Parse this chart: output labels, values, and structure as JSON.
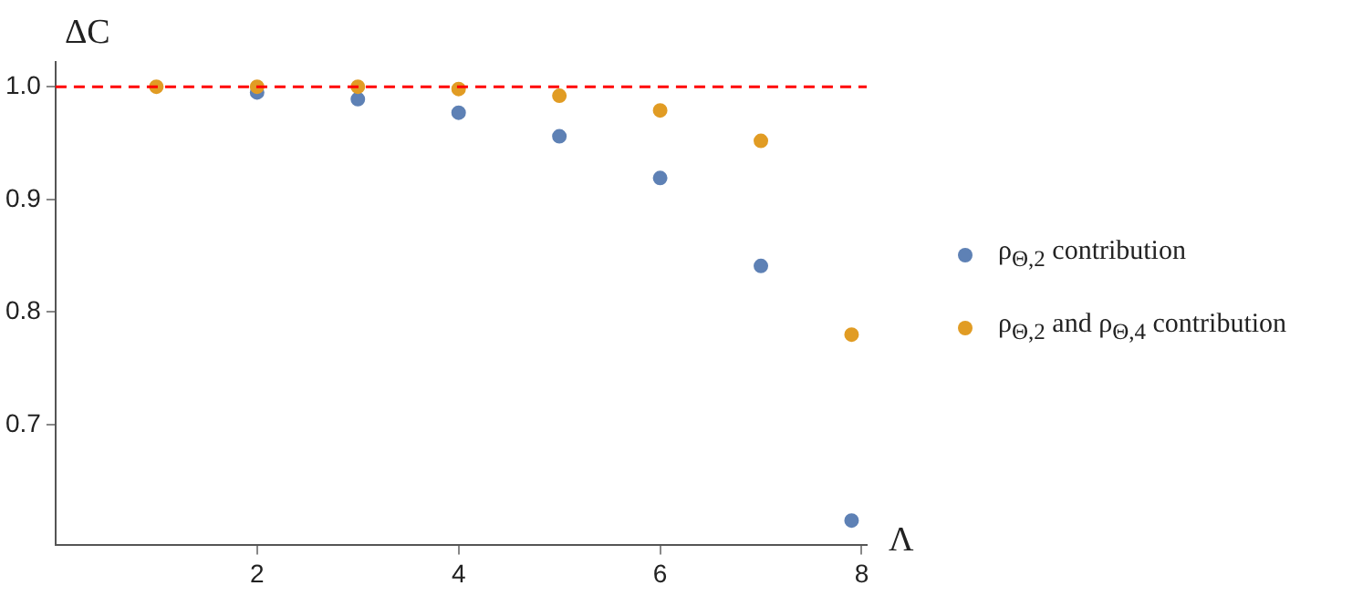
{
  "chart_data": {
    "type": "scatter",
    "xlabel": "Λ",
    "ylabel": "ΔC",
    "xlim": [
      0,
      8.05
    ],
    "ylim": [
      0.593,
      1.022
    ],
    "xticks": [
      2,
      4,
      6,
      8
    ],
    "yticks": [
      0.7,
      0.8,
      0.9,
      {
        "value": 1,
        "label": "1.0"
      }
    ],
    "series": [
      {
        "name": "ρ$_{Θ,2}$ contribution",
        "color": "#5e81b5",
        "x": [
          2,
          3,
          4,
          5,
          6,
          7,
          7.9
        ],
        "values": [
          0.995,
          0.989,
          0.977,
          0.956,
          0.919,
          0.841,
          0.615
        ]
      },
      {
        "name": "ρ$_{Θ,2}$ and ρ$_{Θ,4}$ contribution",
        "color": "#e19c24",
        "x": [
          1,
          2,
          3,
          4,
          5,
          6,
          7,
          7.9
        ],
        "values": [
          1.0,
          1.0,
          1.0,
          0.998,
          0.992,
          0.979,
          0.952,
          0.78
        ]
      }
    ],
    "ref_lines": [
      {
        "axis": "y",
        "value": 1.0,
        "color": "#ff0000",
        "line_style": "dashed"
      }
    ],
    "grid": false,
    "legend": "right",
    "marker": "circle"
  }
}
